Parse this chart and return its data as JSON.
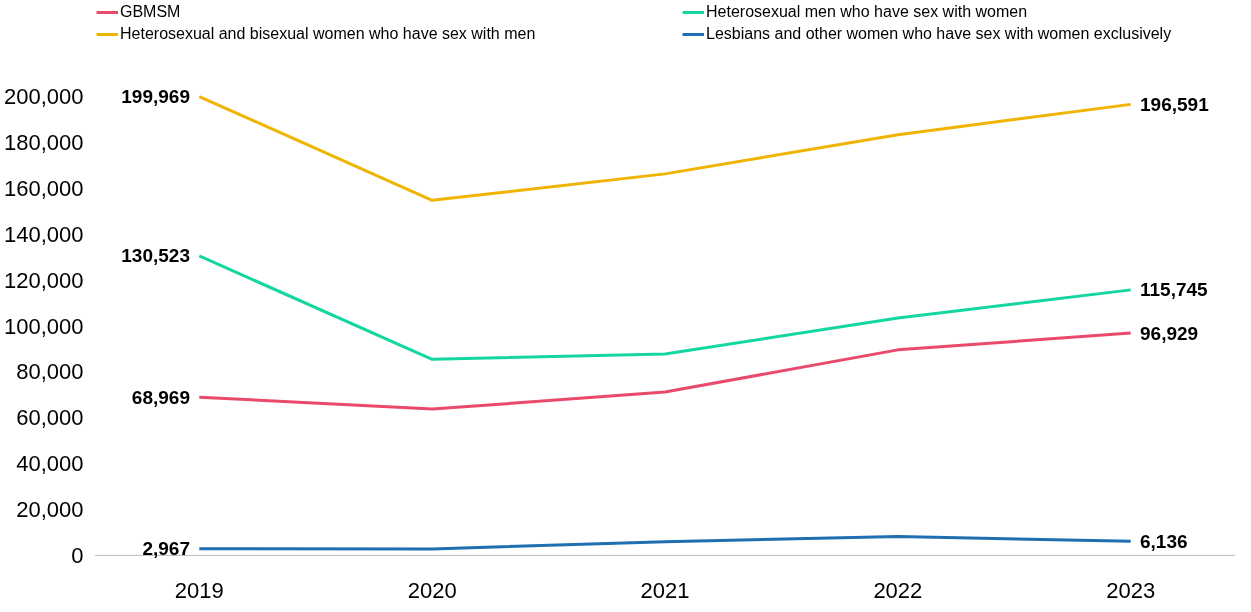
{
  "chart_data": {
    "type": "line",
    "categories": [
      "2019",
      "2020",
      "2021",
      "2022",
      "2023"
    ],
    "ylim": [
      0,
      200000
    ],
    "yticks": [
      {
        "value": 0,
        "label": "0"
      },
      {
        "value": 20000,
        "label": "20,000"
      },
      {
        "value": 40000,
        "label": "40,000"
      },
      {
        "value": 60000,
        "label": "60,000"
      },
      {
        "value": 80000,
        "label": "80,000"
      },
      {
        "value": 100000,
        "label": "100,000"
      },
      {
        "value": 120000,
        "label": "120,000"
      },
      {
        "value": 140000,
        "label": "140,000"
      },
      {
        "value": 160000,
        "label": "160,000"
      },
      {
        "value": 180000,
        "label": "180,000"
      },
      {
        "value": 200000,
        "label": "200,000"
      }
    ],
    "grid": false,
    "legend": "top",
    "marker": "none",
    "line_style": "solid",
    "series": [
      {
        "name": "GBMSM",
        "color": "#e94a6c",
        "values": [
          68969,
          63800,
          71200,
          89600,
          96929
        ],
        "value_labels": [
          "68,969",
          null,
          null,
          null,
          "96,929"
        ]
      },
      {
        "name": "Heterosexual and bisexual women who have sex with men",
        "color": "#f0b400",
        "values": [
          199969,
          154800,
          166300,
          183400,
          196591
        ],
        "value_labels": [
          "199,969",
          null,
          null,
          null,
          "196,591"
        ]
      },
      {
        "name": "Heterosexual men who have sex with women",
        "color": "#14d6a0",
        "values": [
          130523,
          85500,
          87800,
          103500,
          115745
        ],
        "value_labels": [
          "130,523",
          null,
          null,
          null,
          "115,745"
        ]
      },
      {
        "name": "Lesbians and other women who have sex with women exclusively",
        "color": "#1f6fb2",
        "values": [
          2967,
          2800,
          6000,
          8300,
          6136
        ],
        "value_labels": [
          "2,967",
          null,
          null,
          null,
          "6,136"
        ]
      }
    ]
  }
}
